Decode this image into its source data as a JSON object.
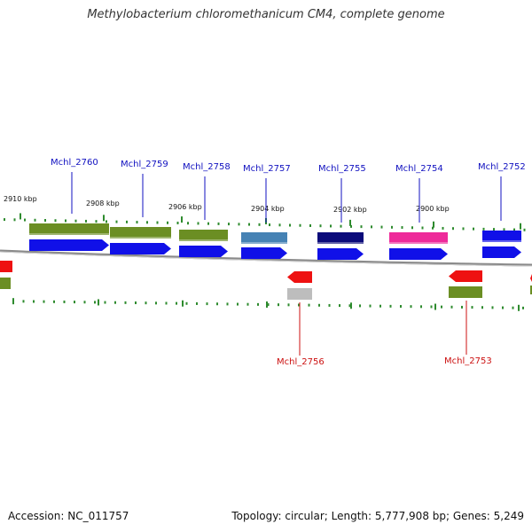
{
  "title": "Methylobacterium chloromethanicum CM4, complete genome",
  "footer": {
    "accession": "Accession: NC_011757",
    "summary": "Topology: circular; Length: 5,777,908 bp; Genes: 5,249"
  },
  "colors": {
    "cds_forward": "#1010e8",
    "cds_reverse": "#ee1111",
    "gene_green": "#6b8e23",
    "gene_steelblue": "#4682b4",
    "gene_navy": "#0b0b7a",
    "gene_magenta": "#ee2a9a",
    "gene_grey": "#bdbdbd",
    "tick_green": "#2e8b2e",
    "backbone": "#8a8a8a",
    "label_forward": "#1010c0",
    "label_reverse": "#cc1111"
  },
  "ticks": [
    {
      "label": "2910 kbp"
    },
    {
      "label": "2908 kbp"
    },
    {
      "label": "2906 kbp"
    },
    {
      "label": "2904 kbp"
    },
    {
      "label": "2902 kbp"
    },
    {
      "label": "2900 kbp"
    }
  ],
  "forward_genes": [
    {
      "label": "Mchl_2760",
      "bar_color": "gene_green"
    },
    {
      "label": "Mchl_2759",
      "bar_color": "gene_green"
    },
    {
      "label": "Mchl_2758",
      "bar_color": "gene_green"
    },
    {
      "label": "Mchl_2757",
      "bar_color": "gene_steelblue"
    },
    {
      "label": "Mchl_2755",
      "bar_color": "gene_navy"
    },
    {
      "label": "Mchl_2754",
      "bar_color": "gene_magenta"
    },
    {
      "label": "Mchl_2752",
      "bar_color": "cds_forward"
    }
  ],
  "reverse_genes": [
    {
      "label": "Mchl_2756",
      "bar_color": "gene_grey"
    },
    {
      "label": "Mchl_2753",
      "bar_color": "gene_green"
    }
  ]
}
